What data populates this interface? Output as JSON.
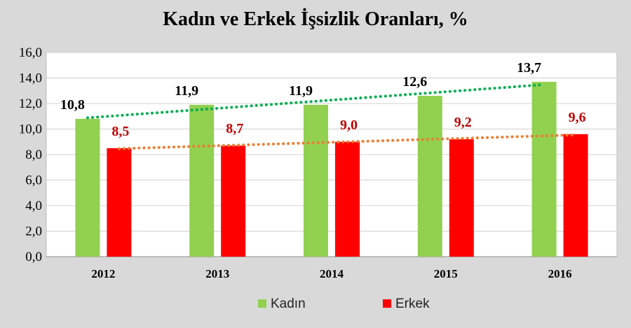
{
  "chart_data": {
    "type": "bar",
    "title": "Kadın ve Erkek İşsizlik Oranları, %",
    "categories": [
      "2012",
      "2013",
      "2014",
      "2015",
      "2016"
    ],
    "series": [
      {
        "name": "Kadın",
        "values": [
          10.8,
          11.9,
          11.9,
          12.6,
          13.7
        ],
        "labels": [
          "10,8",
          "11,9",
          "11,9",
          "12,6",
          "13,7"
        ],
        "color": "#92d050",
        "label_color": "#000000",
        "trendline_color": "#00b050"
      },
      {
        "name": "Erkek",
        "values": [
          8.5,
          8.7,
          9.0,
          9.2,
          9.6
        ],
        "labels": [
          "8,5",
          "8,7",
          "9,0",
          "9,2",
          "9,6"
        ],
        "color": "#ff0000",
        "label_color": "#c00000",
        "trendline_color": "#ed7d31"
      }
    ],
    "ylim": [
      0,
      16
    ],
    "yticks": [
      0,
      2,
      4,
      6,
      8,
      10,
      12,
      14,
      16
    ],
    "ytick_labels": [
      "0,0",
      "2,0",
      "4,0",
      "6,0",
      "8,0",
      "10,0",
      "12,0",
      "14,0",
      "16,0"
    ],
    "trendlines": "linear, dotted",
    "grid": true,
    "legend_position": "bottom",
    "plot_background": "#ffffff",
    "page_background": "#d9d9d9"
  }
}
